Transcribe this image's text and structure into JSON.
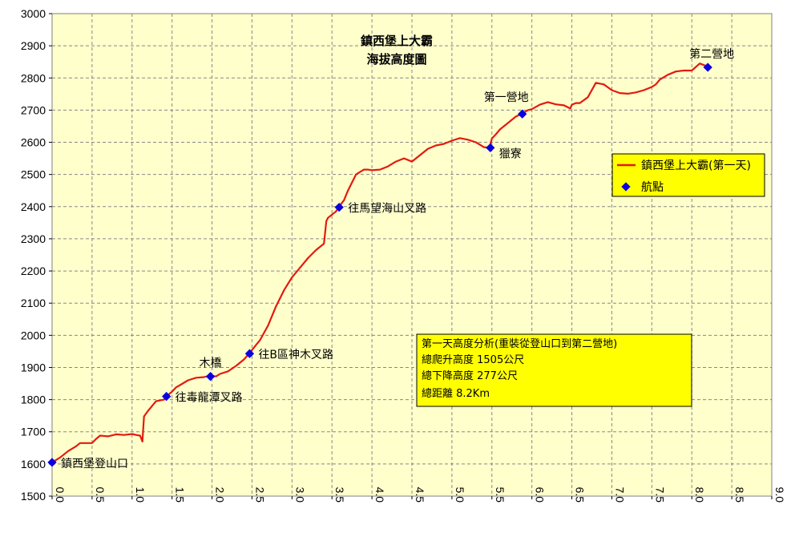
{
  "colors": {
    "plot_bg": "#FFFFCC",
    "line": "#E31B0E",
    "marker": "#0A00E0",
    "grid": "#888888",
    "box_bg": "#FFFF00"
  },
  "chart_data": {
    "type": "line",
    "title": [
      "鎮西堡上大霸",
      "海拔高度圖"
    ],
    "xlabel": "",
    "ylabel": "",
    "xlim": [
      0,
      9
    ],
    "ylim": [
      1500,
      3000
    ],
    "xticks": [
      "0.0",
      "0.5",
      "1.0",
      "1.5",
      "2.0",
      "2.5",
      "3.0",
      "3.5",
      "4.0",
      "4.5",
      "5.0",
      "5.5",
      "6.0",
      "6.5",
      "7.0",
      "7.5",
      "8.0",
      "8.5",
      "9.0"
    ],
    "yticks": [
      "3000",
      "2900",
      "2800",
      "2700",
      "2600",
      "2500",
      "2400",
      "2300",
      "2200",
      "2100",
      "2000",
      "1900",
      "1800",
      "1700",
      "1600",
      "1500"
    ],
    "grid": true,
    "legend_position": "right",
    "series": [
      {
        "name": "鎮西堡上大霸(第一天)",
        "x": [
          0.0,
          0.1,
          0.2,
          0.3,
          0.35,
          0.5,
          0.55,
          0.6,
          0.7,
          0.8,
          0.9,
          1.0,
          1.05,
          1.1,
          1.13,
          1.15,
          1.2,
          1.25,
          1.3,
          1.4,
          1.43,
          1.5,
          1.55,
          1.6,
          1.7,
          1.8,
          1.9,
          1.97,
          2.05,
          2.1,
          2.2,
          2.3,
          2.4,
          2.47,
          2.55,
          2.6,
          2.7,
          2.8,
          2.9,
          3.0,
          3.1,
          3.2,
          3.3,
          3.4,
          3.43,
          3.45,
          3.5,
          3.55,
          3.59,
          3.65,
          3.7,
          3.8,
          3.9,
          3.95,
          4.0,
          4.1,
          4.2,
          4.3,
          4.4,
          4.5,
          4.6,
          4.7,
          4.8,
          4.9,
          5.0,
          5.1,
          5.2,
          5.3,
          5.4,
          5.47,
          5.5,
          5.55,
          5.6,
          5.7,
          5.8,
          5.87,
          5.95,
          6.0,
          6.1,
          6.2,
          6.3,
          6.4,
          6.48,
          6.5,
          6.55,
          6.6,
          6.7,
          6.8,
          6.9,
          7.0,
          7.1,
          7.2,
          7.3,
          7.4,
          7.5,
          7.55,
          7.6,
          7.7,
          7.8,
          7.9,
          8.0,
          8.1,
          8.2
        ],
        "y": [
          1605,
          1620,
          1640,
          1655,
          1665,
          1665,
          1678,
          1688,
          1686,
          1692,
          1690,
          1693,
          1690,
          1688,
          1670,
          1748,
          1765,
          1780,
          1795,
          1800,
          1810,
          1825,
          1838,
          1845,
          1860,
          1868,
          1870,
          1875,
          1872,
          1880,
          1888,
          1905,
          1925,
          1945,
          1970,
          1985,
          2030,
          2090,
          2140,
          2180,
          2210,
          2240,
          2265,
          2285,
          2355,
          2365,
          2375,
          2385,
          2400,
          2420,
          2450,
          2500,
          2515,
          2515,
          2513,
          2515,
          2525,
          2540,
          2550,
          2540,
          2560,
          2580,
          2590,
          2595,
          2605,
          2613,
          2608,
          2600,
          2585,
          2583,
          2612,
          2625,
          2640,
          2660,
          2680,
          2688,
          2700,
          2703,
          2717,
          2725,
          2718,
          2715,
          2705,
          2717,
          2722,
          2722,
          2740,
          2785,
          2780,
          2762,
          2753,
          2751,
          2755,
          2762,
          2772,
          2780,
          2795,
          2810,
          2820,
          2823,
          2823,
          2845,
          2835
        ]
      }
    ],
    "waypoints": {
      "name": "航點",
      "points": [
        {
          "x": 0.0,
          "y": 1605,
          "label": "鎮西堡登山口"
        },
        {
          "x": 1.43,
          "y": 1810,
          "label": "往毒龍潭叉路"
        },
        {
          "x": 1.98,
          "y": 1872,
          "label": "木橋"
        },
        {
          "x": 2.47,
          "y": 1943,
          "label": "往B區神木叉路"
        },
        {
          "x": 3.59,
          "y": 2398,
          "label": "往馬望海山叉路"
        },
        {
          "x": 5.48,
          "y": 2583,
          "label": "獵寮"
        },
        {
          "x": 5.88,
          "y": 2688,
          "label": "第一營地"
        },
        {
          "x": 8.2,
          "y": 2833,
          "label": "第二營地"
        }
      ]
    },
    "annotation": [
      "第一天高度分析(重裝從登山口到第二營地)",
      "總爬升高度 1505公尺",
      "總下降高度 277公尺",
      "總距離 8.2Km"
    ]
  }
}
